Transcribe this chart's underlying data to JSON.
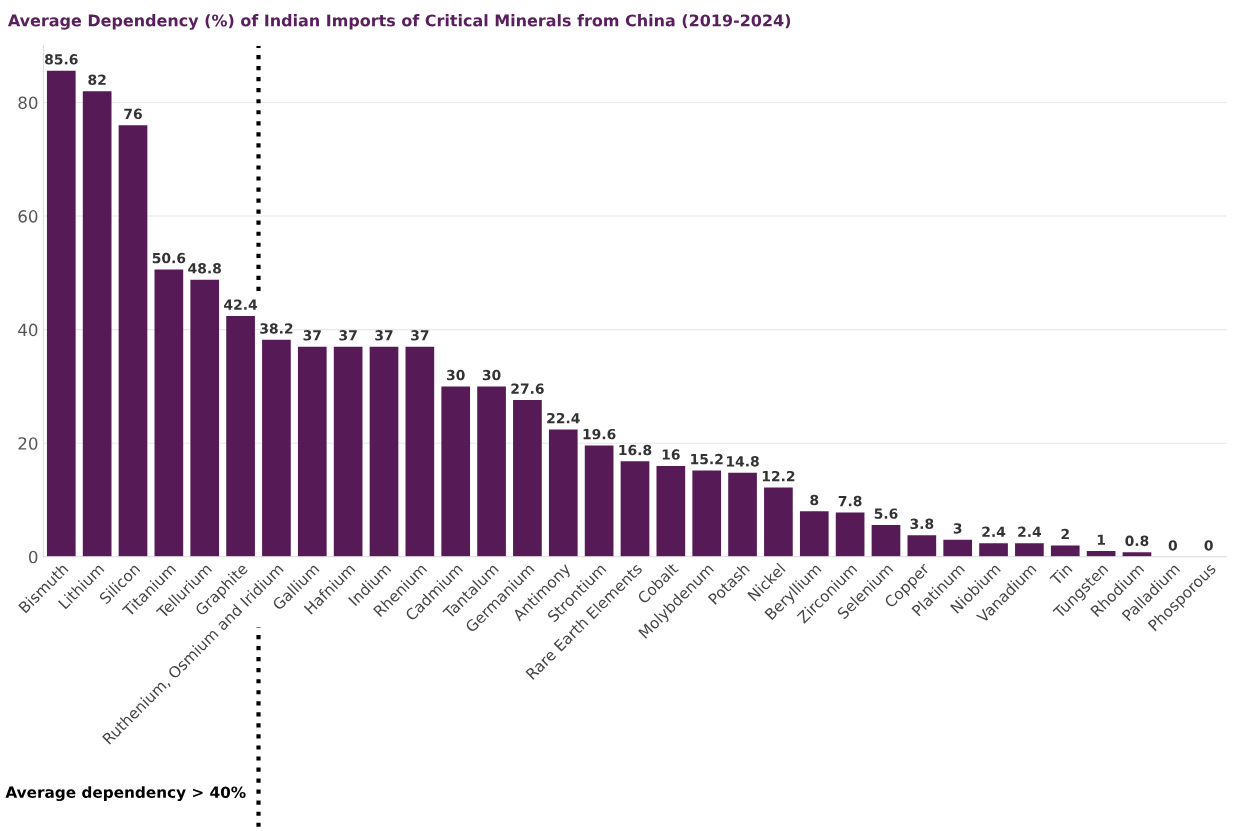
{
  "chart_data": {
    "type": "bar",
    "title": "Average Dependency (%) of Indian Imports of Critical Minerals from China (2019-2024)",
    "categories": [
      "Bismuth",
      "Lithium",
      "Silicon",
      "Titanium",
      "Tellurium",
      "Graphite",
      "Ruthenium, Osmium and Iridium",
      "Gallium",
      "Hafnium",
      "Indium",
      "Rhenium",
      "Cadmium",
      "Tantalum",
      "Germanium",
      "Antimony",
      "Strontium",
      "Rare Earth Elements",
      "Cobalt",
      "Molybdenum",
      "Potash",
      "Nickel",
      "Beryllium",
      "Zirconium",
      "Selenium",
      "Copper",
      "Platinum",
      "Niobium",
      "Vanadium",
      "Tin",
      "Tungsten",
      "Rhodium",
      "Palladium",
      "Phosporous"
    ],
    "values": [
      85.6,
      82,
      76,
      50.6,
      48.8,
      42.4,
      38.2,
      37,
      37,
      37,
      37,
      30,
      30,
      27.6,
      22.4,
      19.6,
      16.8,
      16,
      15.2,
      14.8,
      12.2,
      8,
      7.8,
      5.6,
      3.8,
      3,
      2.4,
      2.4,
      2,
      1,
      0.8,
      0,
      0
    ],
    "color": "#561a57",
    "ylim": [
      0,
      90
    ],
    "yticks": [
      0,
      20,
      40,
      60,
      80
    ],
    "grid": "y",
    "data_labels": true,
    "annotations": [
      "Average dependency > 40%"
    ]
  }
}
